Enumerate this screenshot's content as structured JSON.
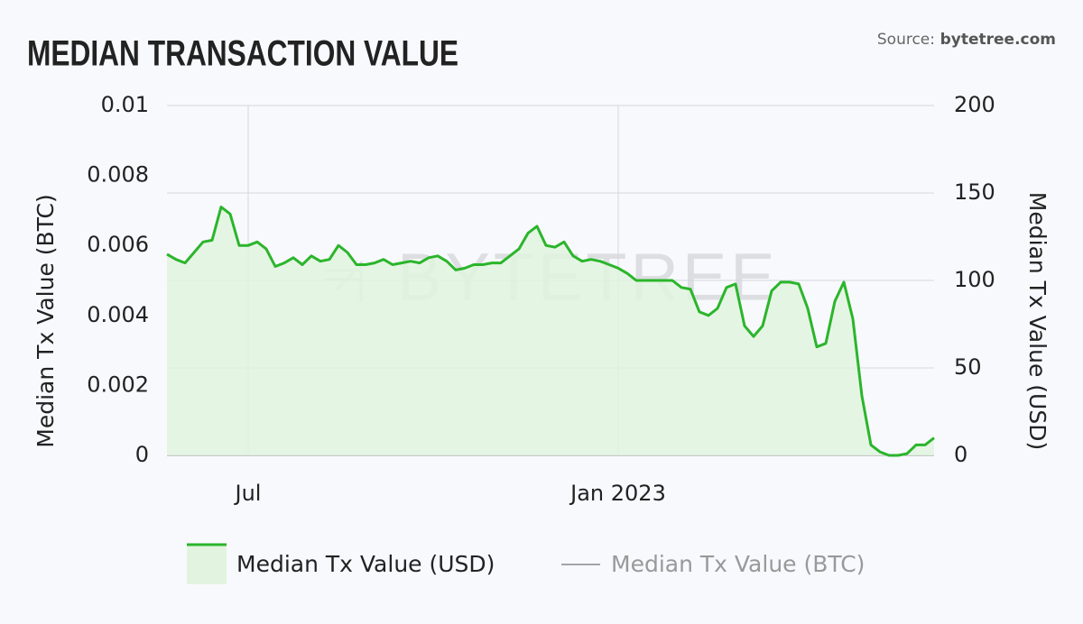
{
  "chart_data": {
    "type": "area",
    "title": "MEDIAN TRANSACTION VALUE",
    "source_label": "Source:",
    "source": "bytetree.com",
    "watermark": "BYTETREE",
    "ylabel": "Median Tx Value (BTC)",
    "y2label": "Median Tx Value (USD)",
    "categories": [
      null,
      null,
      null,
      null,
      null,
      null,
      null,
      null,
      null,
      "Jul",
      null,
      null,
      null,
      null,
      null,
      null,
      null,
      null,
      null,
      null,
      null,
      null,
      null,
      null,
      null,
      null,
      null,
      null,
      null,
      null,
      null,
      null,
      null,
      null,
      null,
      null,
      null,
      null,
      null,
      null,
      null,
      null,
      null,
      null,
      null,
      null,
      null,
      null,
      null,
      null,
      "Jan 2023",
      null,
      null,
      null,
      null,
      null,
      null,
      null,
      null,
      null,
      null,
      null,
      null,
      null,
      null,
      null,
      null,
      null,
      null,
      null,
      null,
      null,
      null,
      null,
      null,
      null,
      null,
      null,
      null,
      null,
      null,
      null,
      null,
      null,
      null,
      null
    ],
    "series": [
      {
        "name": "Median Tx Value (USD)",
        "color": "#2bb52b",
        "fill": "#e2f4df",
        "axis": "y2",
        "values": [
          115,
          112,
          110,
          116,
          122,
          123,
          142,
          138,
          120,
          120,
          122,
          118,
          108,
          110,
          113,
          109,
          114,
          111,
          112,
          120,
          116,
          109,
          109,
          110,
          112,
          109,
          110,
          111,
          110,
          113,
          114,
          111,
          106,
          107,
          109,
          109,
          110,
          110,
          114,
          118,
          127,
          131,
          120,
          119,
          122,
          114,
          111,
          112,
          111,
          109,
          107,
          104,
          100,
          100,
          100,
          100,
          100,
          96,
          95,
          82,
          80,
          84,
          96,
          98,
          74,
          68,
          74,
          94,
          99,
          99,
          98,
          84,
          62,
          64,
          88,
          99,
          78,
          34,
          6,
          2,
          0,
          0,
          1,
          6,
          6,
          10
        ]
      },
      {
        "name": "Median Tx Value (BTC)",
        "color": "#888888",
        "hidden": true
      }
    ],
    "ylim": [
      0,
      0.01
    ],
    "yticks": [
      0,
      0.002,
      0.004,
      0.006,
      0.008,
      0.01
    ],
    "y2lim": [
      0,
      200
    ],
    "y2ticks": [
      0,
      50,
      100,
      150,
      200
    ],
    "grid": true
  }
}
